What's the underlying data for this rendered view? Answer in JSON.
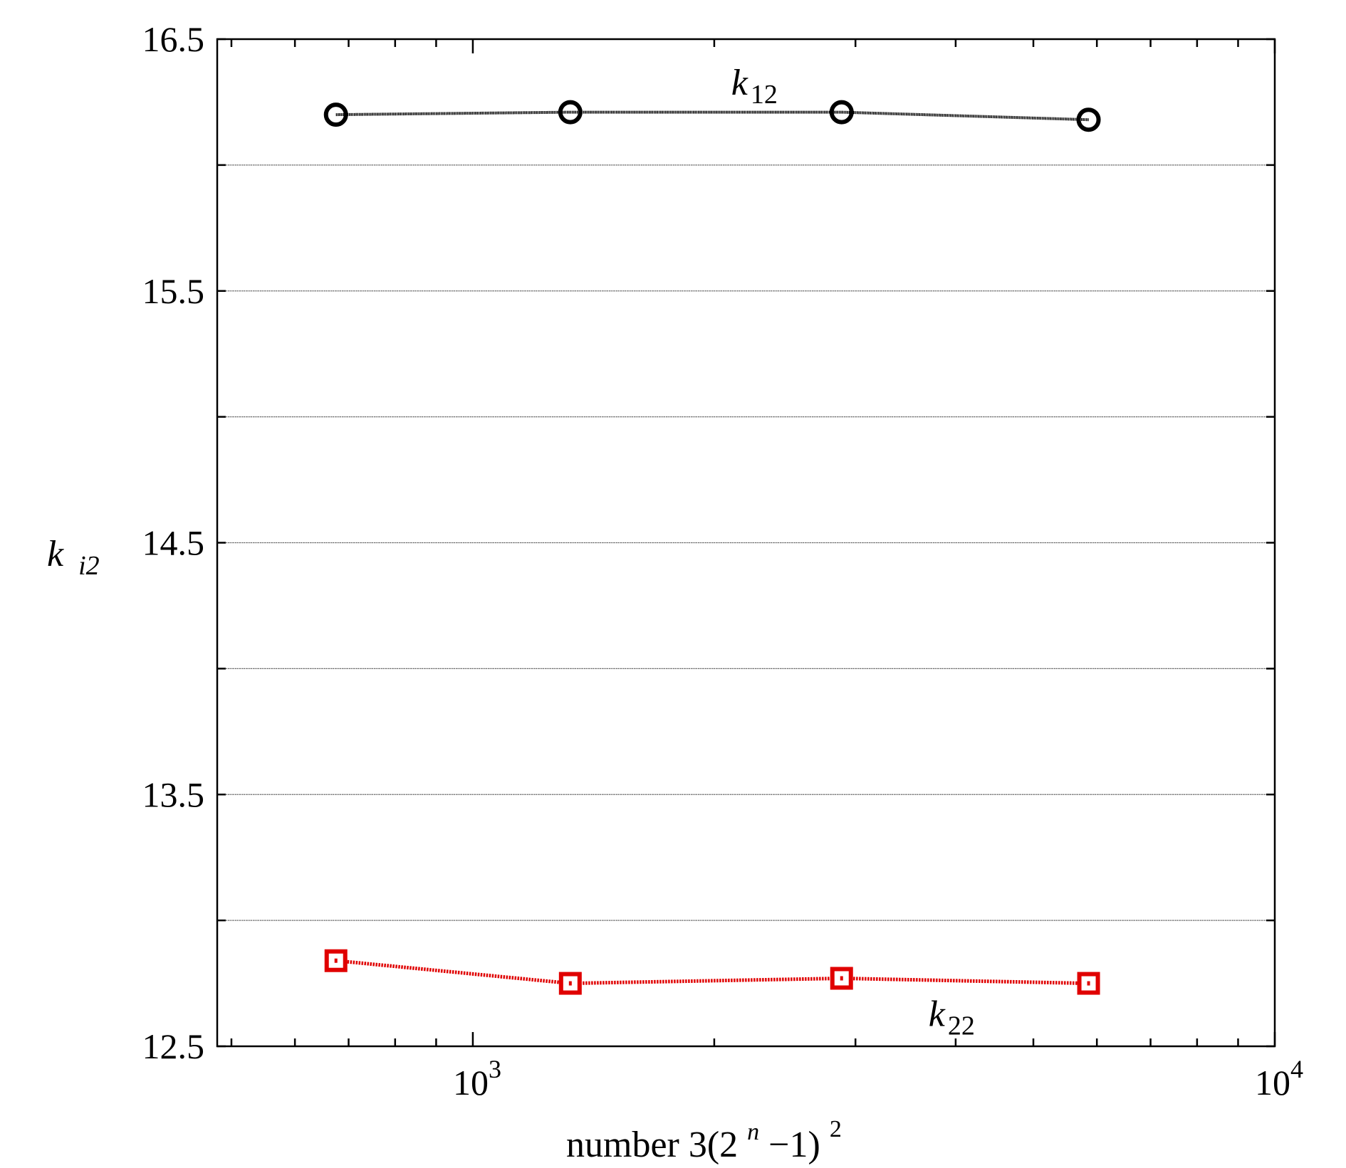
{
  "chart_data": {
    "type": "line",
    "xscale": "log",
    "xlim": [
      480,
      10000
    ],
    "ylim": [
      12.5,
      16.5
    ],
    "grid": {
      "y": true,
      "x": false
    },
    "x_ticks": [
      {
        "base": "10",
        "exp": "3",
        "value": 1000
      },
      {
        "base": "10",
        "exp": "4",
        "value": 10000
      }
    ],
    "y_ticks": [
      "12.5",
      "13.5",
      "14.5",
      "15.5",
      "16.5"
    ],
    "y_minor_ticks": [
      13.0,
      14.0,
      15.0,
      16.0
    ],
    "xlabel": {
      "prefix": "number 3(2",
      "sup_n": "n",
      "middle": "−1)",
      "sup_2": "2"
    },
    "ylabel": {
      "main": "k",
      "sub": "i2"
    },
    "x": [
      675,
      1323,
      2883,
      5859
    ],
    "series": [
      {
        "name": "k12",
        "label_main": "k",
        "label_sub": "12",
        "label_anchor": {
          "x": 2100,
          "y": 16.28
        },
        "color": "#000000",
        "marker": "circle",
        "values": [
          16.2,
          16.21,
          16.21,
          16.18
        ]
      },
      {
        "name": "k22",
        "label_main": "k",
        "label_sub": "22",
        "label_anchor": {
          "x": 3700,
          "y": 12.58
        },
        "color": "#e00000",
        "marker": "square",
        "values": [
          12.84,
          12.75,
          12.77,
          12.75
        ]
      }
    ]
  }
}
